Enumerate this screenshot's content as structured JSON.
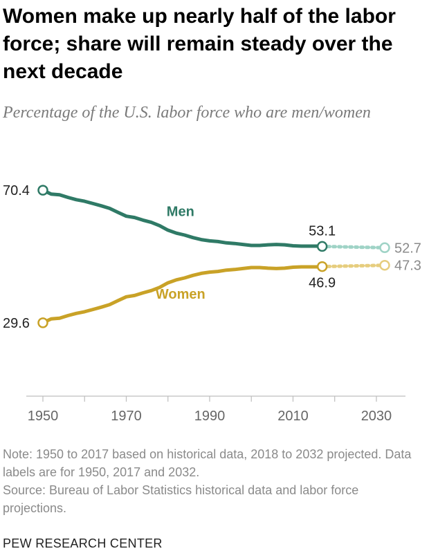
{
  "title": "Women make up nearly half of the labor force; share will remain steady over the next decade",
  "subtitle": "Percentage of the U.S. labor force who are men/women",
  "chart_data": {
    "type": "line",
    "x_range": [
      1950,
      2032
    ],
    "ylim": [
      0,
      80
    ],
    "x_ticks": [
      1950,
      1960,
      1970,
      1980,
      1990,
      2000,
      2010,
      2020,
      2030
    ],
    "x_tick_labels": [
      "1950",
      "1970",
      "1990",
      "2010",
      "2030"
    ],
    "grid": false,
    "series": [
      {
        "name": "Men",
        "label": "Men",
        "color": "#2f7a66",
        "projected_color": "#9fd3c6",
        "historical": {
          "x": [
            1950,
            1952,
            1954,
            1956,
            1958,
            1960,
            1962,
            1964,
            1966,
            1968,
            1970,
            1972,
            1974,
            1976,
            1978,
            1980,
            1982,
            1984,
            1986,
            1988,
            1990,
            1992,
            1994,
            1996,
            1998,
            2000,
            2002,
            2004,
            2006,
            2008,
            2010,
            2012,
            2014,
            2016,
            2017
          ],
          "y": [
            70.4,
            69.2,
            69.0,
            68.2,
            67.5,
            67.0,
            66.3,
            65.6,
            64.8,
            63.6,
            62.4,
            62.0,
            61.2,
            60.5,
            59.5,
            58.1,
            57.2,
            56.6,
            55.8,
            55.2,
            54.8,
            54.6,
            54.2,
            54.0,
            53.7,
            53.4,
            53.4,
            53.6,
            53.7,
            53.6,
            53.3,
            53.2,
            53.2,
            53.2,
            53.1
          ]
        },
        "projected": {
          "x": [
            2017,
            2032
          ],
          "y": [
            53.1,
            52.7
          ]
        },
        "labels": {
          "start": "70.4",
          "end_historical": "53.1",
          "end_projected": "52.7"
        }
      },
      {
        "name": "Women",
        "label": "Women",
        "color": "#c9a227",
        "projected_color": "#e6cd7e",
        "historical": {
          "x": [
            1950,
            1952,
            1954,
            1956,
            1958,
            1960,
            1962,
            1964,
            1966,
            1968,
            1970,
            1972,
            1974,
            1976,
            1978,
            1980,
            1982,
            1984,
            1986,
            1988,
            1990,
            1992,
            1994,
            1996,
            1998,
            2000,
            2002,
            2004,
            2006,
            2008,
            2010,
            2012,
            2014,
            2016,
            2017
          ],
          "y": [
            29.6,
            30.8,
            31.0,
            31.8,
            32.5,
            33.0,
            33.7,
            34.4,
            35.2,
            36.4,
            37.6,
            38.0,
            38.8,
            39.5,
            40.5,
            41.9,
            42.8,
            43.4,
            44.2,
            44.8,
            45.2,
            45.4,
            45.8,
            46.0,
            46.3,
            46.6,
            46.6,
            46.4,
            46.3,
            46.4,
            46.7,
            46.8,
            46.8,
            46.8,
            46.9
          ]
        },
        "projected": {
          "x": [
            2017,
            2032
          ],
          "y": [
            46.9,
            47.3
          ]
        },
        "labels": {
          "start": "29.6",
          "end_historical": "46.9",
          "end_projected": "47.3"
        }
      }
    ]
  },
  "notes": {
    "note": "Note: 1950 to 2017 based on historical data, 2018 to 2032 projected. Data labels are for 1950, 2017 and 2032.",
    "source": "Source: Bureau of Labor Statistics historical data and labor force projections."
  },
  "brand": "PEW RESEARCH CENTER"
}
